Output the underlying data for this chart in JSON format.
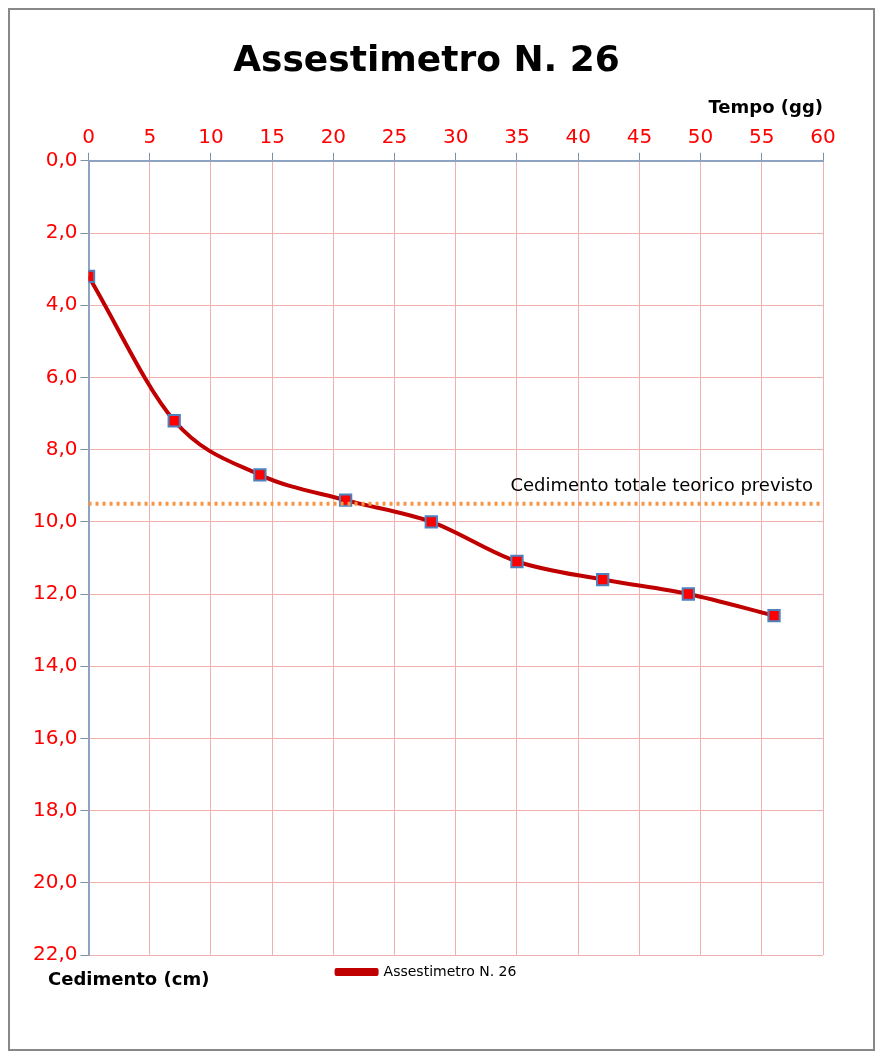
{
  "chart_data": {
    "type": "line",
    "title": "Assestimetro N. 26",
    "xlabel": "Tempo (gg)",
    "ylabel": "Cedimento (cm)",
    "x": [
      0,
      7,
      14,
      21,
      28,
      35,
      42,
      49,
      56
    ],
    "series": [
      {
        "name": "Assestimetro N. 26",
        "color": "#c00000",
        "values": [
          3.2,
          7.2,
          8.7,
          9.4,
          10.0,
          11.1,
          11.6,
          12.0,
          12.6
        ]
      }
    ],
    "xlim": [
      0,
      60
    ],
    "xticks": [
      0,
      5,
      10,
      15,
      20,
      25,
      30,
      35,
      40,
      45,
      50,
      55,
      60
    ],
    "ylim": [
      22,
      0
    ],
    "yticks": [
      {
        "value": 0,
        "label": "0,0"
      },
      {
        "value": 2,
        "label": "2,0"
      },
      {
        "value": 4,
        "label": "4,0"
      },
      {
        "value": 6,
        "label": "6,0"
      },
      {
        "value": 8,
        "label": "8,0"
      },
      {
        "value": 10,
        "label": "10,0"
      },
      {
        "value": 12,
        "label": "12,0"
      },
      {
        "value": 14,
        "label": "14,0"
      },
      {
        "value": 16,
        "label": "16,0"
      },
      {
        "value": 18,
        "label": "18,0"
      },
      {
        "value": 20,
        "label": "20,0"
      },
      {
        "value": 22,
        "label": "22,0"
      }
    ],
    "ref_lines": [
      {
        "axis": "y",
        "value": 9.5,
        "label": "Cedimento totale teorico previsto",
        "color": "#f79646",
        "line_style": "dotted"
      }
    ],
    "grid": true,
    "legend": "bottom",
    "marker": "square",
    "line_style": "solid"
  }
}
